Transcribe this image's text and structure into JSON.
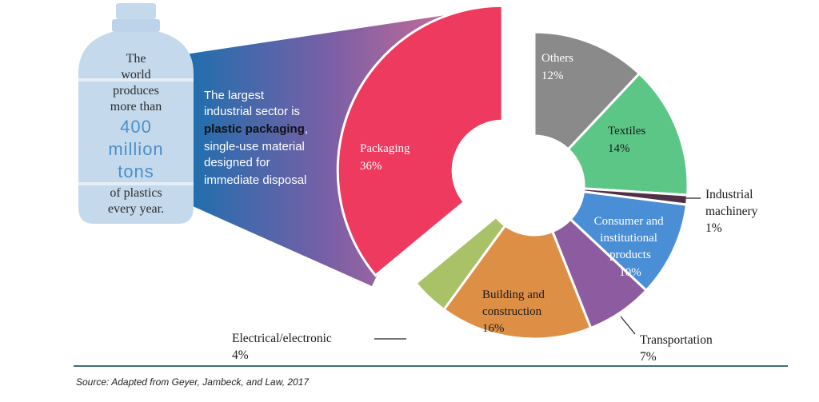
{
  "chart_data": {
    "type": "pie",
    "categories": [
      "Packaging",
      "Others",
      "Textiles",
      "Industrial machinery",
      "Consumer and institutional products",
      "Transportation",
      "Building and construction",
      "Electrical/electronic"
    ],
    "values": [
      36,
      12,
      14,
      1,
      10,
      7,
      16,
      4
    ],
    "percent_labels": [
      "36%",
      "12%",
      "14%",
      "1%",
      "10%",
      "7%",
      "16%",
      "4%"
    ],
    "colors": [
      "#ee3a5f",
      "#8a8a8a",
      "#5cc687",
      "#4f3046",
      "#4a8fd6",
      "#8d5ca0",
      "#dd8f46",
      "#a9c167"
    ],
    "source": "Source:   Adapted from Geyer, Jambeck, and Law, 2017"
  },
  "bottle": {
    "lines": [
      "The",
      "world",
      "produces",
      "more than"
    ],
    "big": [
      "400",
      "million",
      "tons"
    ],
    "tail": [
      "of plastics",
      "every year."
    ]
  },
  "intro": {
    "line1": "The largest",
    "line2": "industrial sector is",
    "bold": "plastic packaging",
    "comma": ",",
    "line4": "single-use material",
    "line5": "designed for",
    "line6": "immediate disposal"
  }
}
